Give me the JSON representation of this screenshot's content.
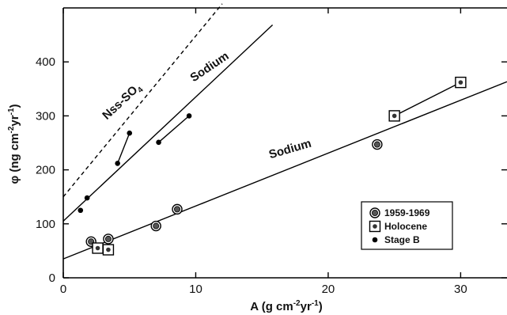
{
  "chart_data": {
    "type": "scatter",
    "xlabel_main": "A (g cm",
    "xlabel_sup": "-2",
    "xlabel_yr": "yr",
    "xlabel_sup2": "-1",
    "xlabel_end": ")",
    "ylabel_main": "φ (ng cm",
    "ylabel_sup": "-2",
    "ylabel_yr": "yr",
    "ylabel_sup2": "-1",
    "ylabel_end": ")",
    "xlim": [
      0,
      33.5
    ],
    "ylim": [
      0,
      500
    ],
    "xticks": [
      0,
      10,
      20,
      30
    ],
    "xtick_labels": [
      "0",
      "10",
      "20",
      "30"
    ],
    "yticks": [
      0,
      100,
      200,
      300,
      400
    ],
    "ytick_labels": [
      "0",
      "100",
      "200",
      "300",
      "400"
    ],
    "legend_position": "lower-right",
    "series": [
      {
        "name": "1959-1969",
        "marker": "circle-dot",
        "points": [
          [
            2.1,
            67
          ],
          [
            3.4,
            72
          ],
          [
            7.0,
            96
          ],
          [
            8.6,
            127
          ],
          [
            23.7,
            247
          ]
        ]
      },
      {
        "name": "Holocene",
        "marker": "square-dot",
        "points": [
          [
            2.6,
            55
          ],
          [
            3.4,
            52
          ],
          [
            25.0,
            300
          ],
          [
            30.0,
            362
          ]
        ]
      },
      {
        "name": "Stage B",
        "marker": "dot",
        "points": [
          [
            1.3,
            125
          ],
          [
            1.8,
            148
          ],
          [
            4.1,
            212
          ],
          [
            5.0,
            268
          ],
          [
            7.2,
            251
          ],
          [
            9.5,
            300
          ]
        ]
      }
    ],
    "connectors": [
      [
        [
          4.1,
          212
        ],
        [
          5.0,
          268
        ]
      ],
      [
        [
          7.2,
          251
        ],
        [
          9.5,
          300
        ]
      ],
      [
        [
          25.0,
          300
        ],
        [
          30.0,
          362
        ]
      ]
    ],
    "fit_lines": [
      {
        "label": "Sodium",
        "intercept": 35,
        "slope": 9.8,
        "x_range": [
          0,
          33.5
        ],
        "style": "solid",
        "label_at": [
          17.2,
          232
        ],
        "label_rotation": -16
      },
      {
        "label": "Sodium",
        "intercept": 105,
        "slope": 23.0,
        "x_range": [
          0,
          15.8
        ],
        "style": "solid",
        "label_at": [
          11.2,
          385
        ],
        "label_rotation": -34
      },
      {
        "label": "Nss-SO",
        "label_sub": "4",
        "intercept": 150,
        "slope": 29.8,
        "x_range": [
          0,
          12.0
        ],
        "style": "dashed",
        "label_at": [
          4.6,
          322
        ],
        "label_rotation": -43
      }
    ]
  }
}
